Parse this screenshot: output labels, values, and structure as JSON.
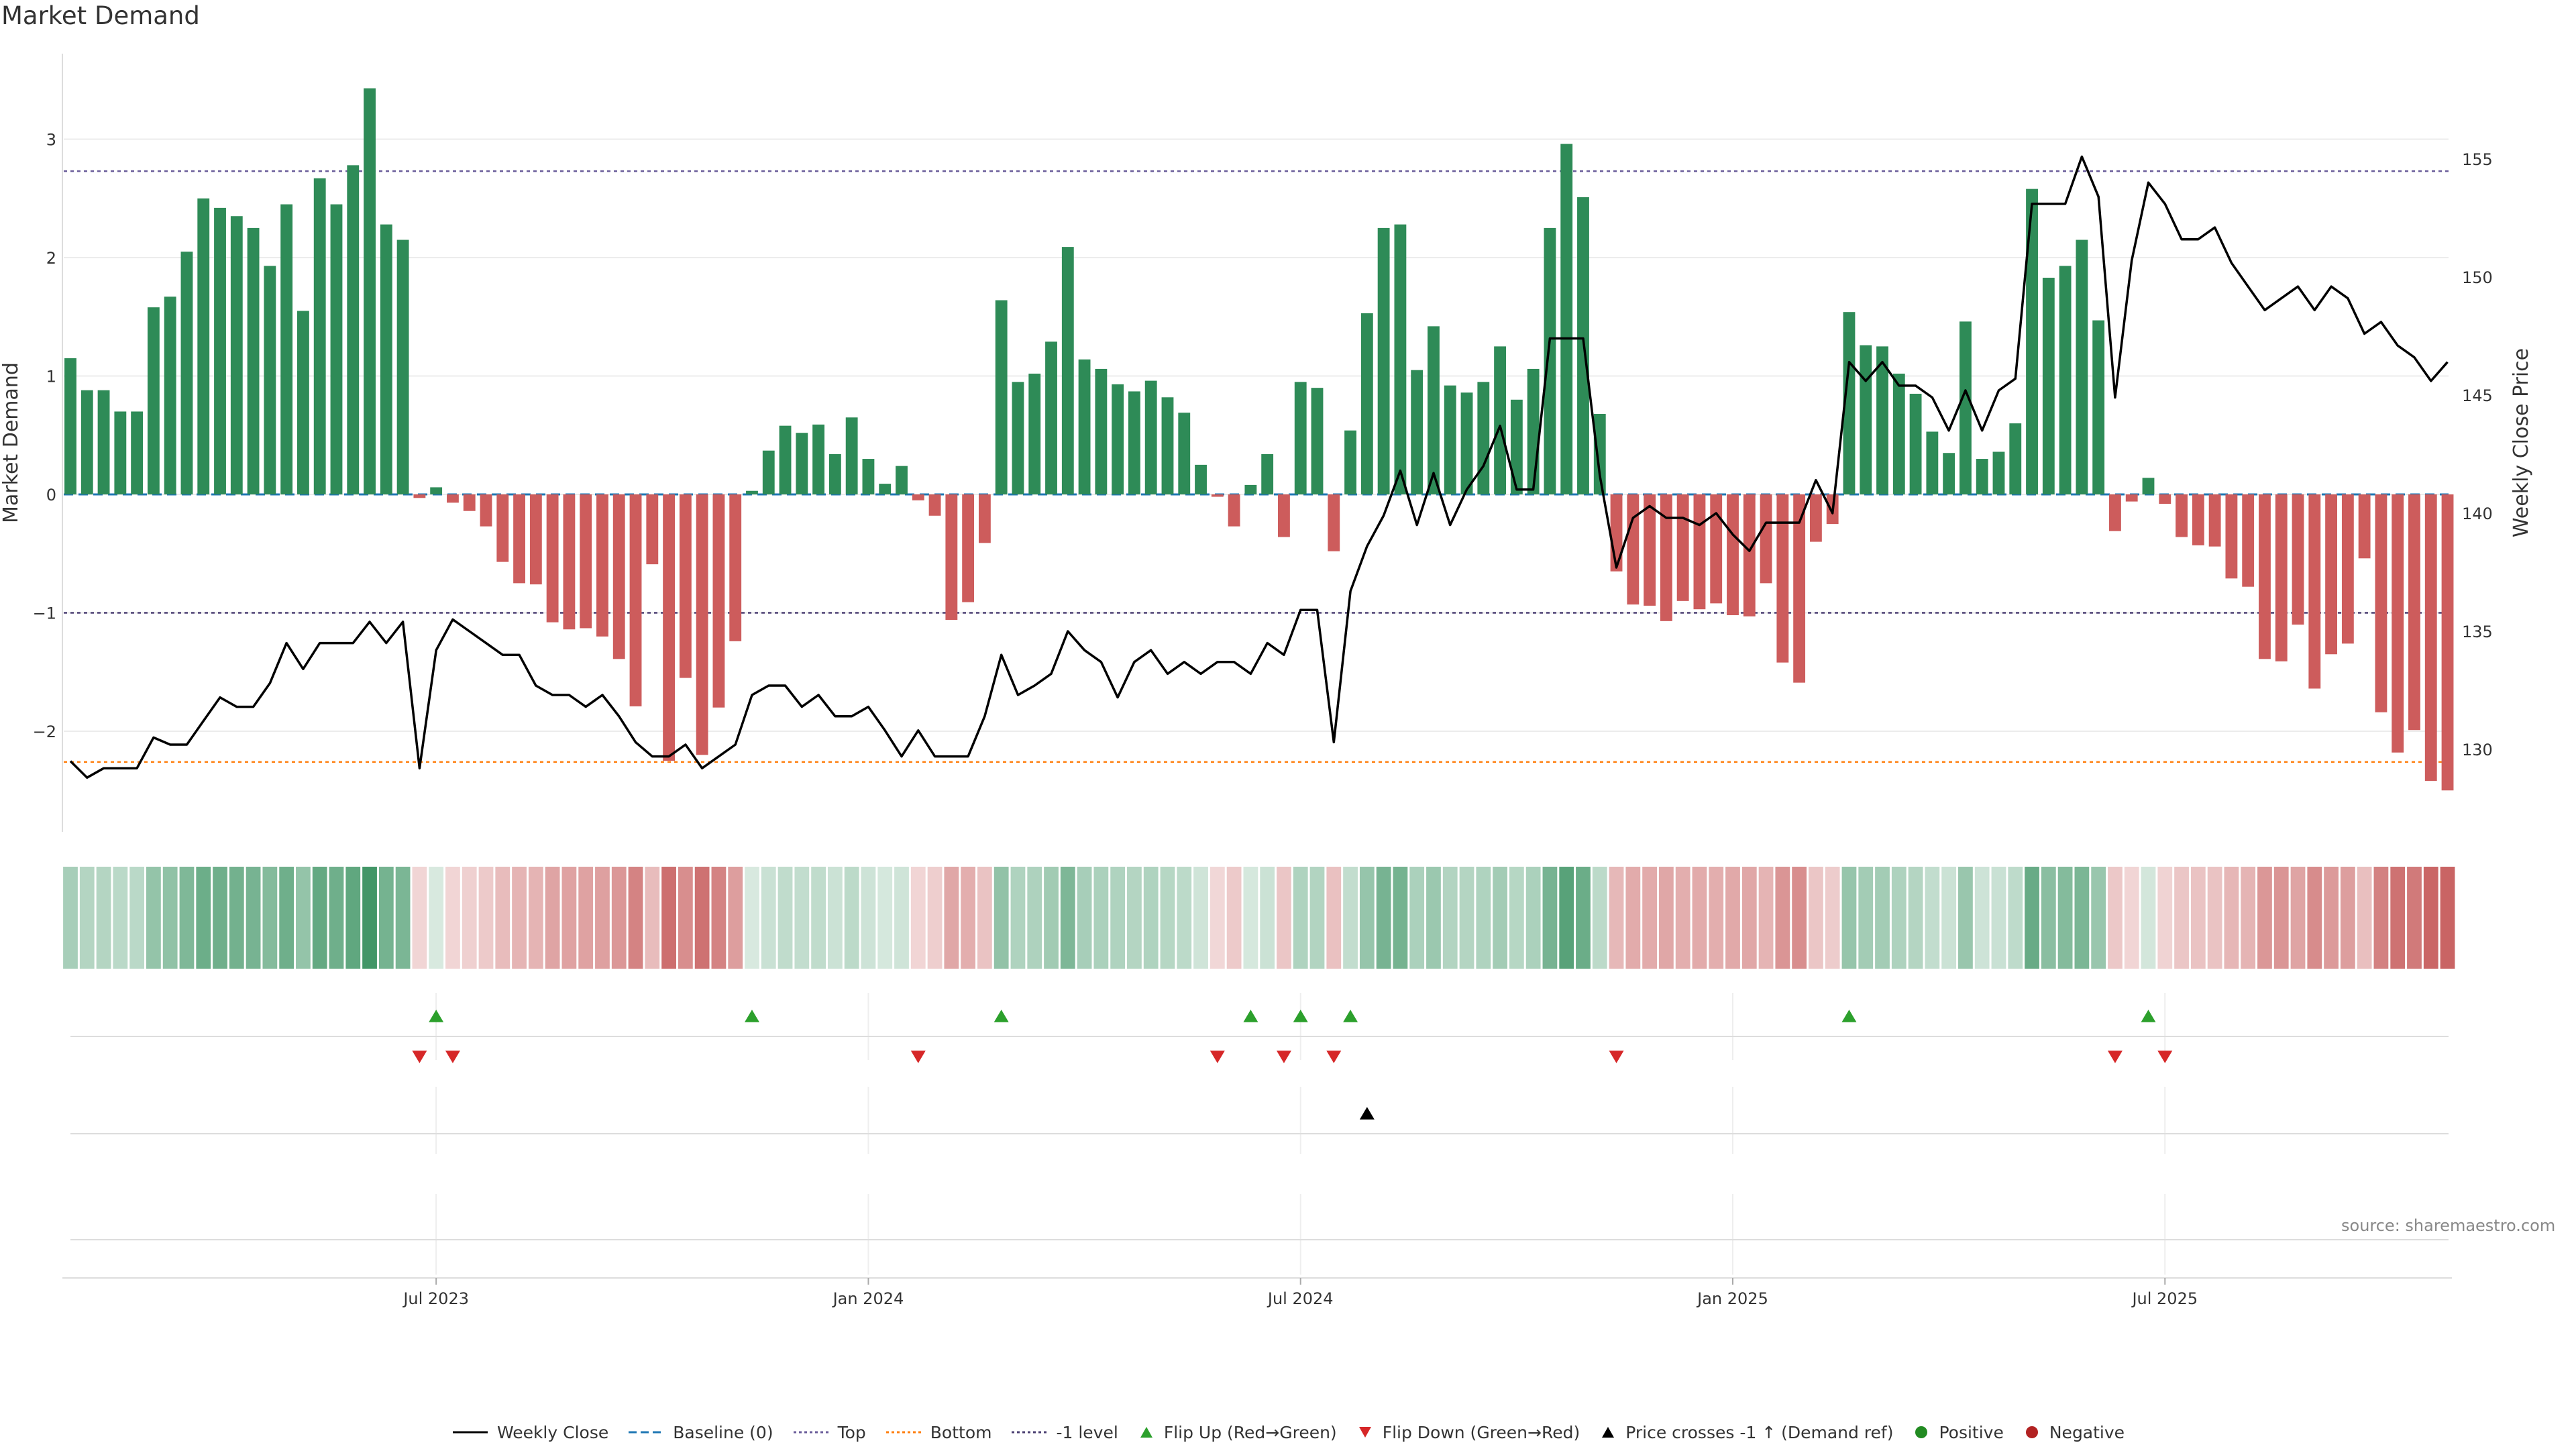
{
  "title": "Market Demand",
  "source": "source: sharemaestro.com",
  "chart_data": {
    "type": "bar",
    "title": "Market Demand",
    "ylabel": "Market Demand",
    "y2label": "Weekly Close Price",
    "ylim": [
      -2.8,
      3.75
    ],
    "y2lim": [
      127.5,
      159.5
    ],
    "yticks": [
      3,
      2,
      1,
      0,
      -1,
      -2
    ],
    "ytick_labels": [
      "3",
      "2",
      "1",
      "0",
      "−1",
      "−2"
    ],
    "y2ticks": [
      155,
      150,
      145,
      140,
      135,
      130
    ],
    "x_ticks": [
      {
        "index": 22,
        "label": "Jul 2023"
      },
      {
        "index": 48,
        "label": "Jan 2024"
      },
      {
        "index": 74,
        "label": "Jul 2024"
      },
      {
        "index": 100,
        "label": "Jan 2025"
      },
      {
        "index": 126,
        "label": "Jul 2025"
      }
    ],
    "reference_lines": {
      "baseline": 0,
      "top": 2.73,
      "bottom": -2.26,
      "minus_one_level": -1
    },
    "demand": [
      1.15,
      0.88,
      0.88,
      0.7,
      0.7,
      1.58,
      1.67,
      2.05,
      2.5,
      2.42,
      2.35,
      2.25,
      1.93,
      2.45,
      1.55,
      2.67,
      2.45,
      2.78,
      3.43,
      2.28,
      2.15,
      -0.03,
      0.06,
      -0.07,
      -0.14,
      -0.27,
      -0.57,
      -0.75,
      -0.76,
      -1.08,
      -1.14,
      -1.13,
      -1.2,
      -1.39,
      -1.79,
      -0.59,
      -2.25,
      -1.55,
      -2.2,
      -1.8,
      -1.24,
      0.03,
      0.37,
      0.58,
      0.52,
      0.59,
      0.34,
      0.65,
      0.3,
      0.09,
      0.24,
      -0.05,
      -0.18,
      -1.06,
      -0.91,
      -0.41,
      1.64,
      0.95,
      1.02,
      1.29,
      2.09,
      1.14,
      1.06,
      0.93,
      0.87,
      0.96,
      0.82,
      0.69,
      0.25,
      -0.02,
      -0.27,
      0.08,
      0.34,
      -0.36,
      0.95,
      0.9,
      -0.48,
      0.54,
      1.53,
      2.25,
      2.28,
      1.05,
      1.42,
      0.92,
      0.86,
      0.95,
      1.25,
      0.8,
      1.06,
      2.25,
      2.96,
      2.51,
      0.68,
      -0.65,
      -0.93,
      -0.94,
      -1.07,
      -0.9,
      -0.97,
      -0.92,
      -1.02,
      -1.03,
      -0.75,
      -1.42,
      -1.59,
      -0.4,
      -0.25,
      1.54,
      1.26,
      1.25,
      1.02,
      0.85,
      0.53,
      0.35,
      1.46,
      0.3,
      0.36,
      0.6,
      2.58,
      1.83,
      1.93,
      2.15,
      1.47,
      -0.31,
      -0.06,
      0.14,
      -0.08,
      -0.36,
      -0.43,
      -0.44,
      -0.71,
      -0.78,
      -1.39,
      -1.41,
      -1.1,
      -1.64,
      -1.35,
      -1.26,
      -0.54,
      -1.84,
      -2.18,
      -1.99,
      -2.42,
      -2.5
    ],
    "weekly_close": [
      129.5,
      128.8,
      129.2,
      129.2,
      129.2,
      130.5,
      130.2,
      130.2,
      131.2,
      132.2,
      131.8,
      131.8,
      132.8,
      134.5,
      133.4,
      134.5,
      134.5,
      134.5,
      135.4,
      134.5,
      135.4,
      129.2,
      134.2,
      135.5,
      135.0,
      134.5,
      134.0,
      134.0,
      132.7,
      132.3,
      132.3,
      131.8,
      132.3,
      131.4,
      130.3,
      129.7,
      129.7,
      130.2,
      129.2,
      129.7,
      130.2,
      132.3,
      132.7,
      132.7,
      131.8,
      132.3,
      131.4,
      131.4,
      131.8,
      130.8,
      129.7,
      130.8,
      129.7,
      129.7,
      129.7,
      131.4,
      134.0,
      132.3,
      132.7,
      133.2,
      135.0,
      134.2,
      133.7,
      132.2,
      133.7,
      134.2,
      133.2,
      133.7,
      133.2,
      133.7,
      133.7,
      133.2,
      134.5,
      134.0,
      135.9,
      135.9,
      130.3,
      136.7,
      138.6,
      139.9,
      141.8,
      139.5,
      141.7,
      139.5,
      141.0,
      142.0,
      143.7,
      141.0,
      141.0,
      147.4,
      147.4,
      147.4,
      141.6,
      137.7,
      139.8,
      140.3,
      139.8,
      139.8,
      139.5,
      140.0,
      139.1,
      138.4,
      139.6,
      139.6,
      139.6,
      141.4,
      140.0,
      146.4,
      145.6,
      146.4,
      145.4,
      145.4,
      144.9,
      143.5,
      145.2,
      143.5,
      145.2,
      145.7,
      153.1,
      153.1,
      153.1,
      155.1,
      153.4,
      144.9,
      150.7,
      154.0,
      153.1,
      151.6,
      151.6,
      152.1,
      150.6,
      149.6,
      148.6,
      149.1,
      149.6,
      148.6,
      149.6,
      149.1,
      147.6,
      148.1,
      147.1,
      146.6,
      145.6,
      146.4
    ],
    "flip_up_idx": [
      22,
      41,
      56,
      71,
      74,
      77,
      107,
      125
    ],
    "flip_down_idx": [
      21,
      23,
      51,
      69,
      73,
      76,
      93,
      123,
      126
    ],
    "price_cross_idx": [
      78
    ],
    "legend": [
      {
        "label": "Weekly Close",
        "marker": "line-solid",
        "color": "#000000"
      },
      {
        "label": "Baseline (0)",
        "marker": "line-dash",
        "color": "#1f77b4"
      },
      {
        "label": "Top",
        "marker": "line-dot",
        "color": "#6a5d9a"
      },
      {
        "label": "Bottom",
        "marker": "line-dot",
        "color": "#ff7f0e"
      },
      {
        "label": "-1 level",
        "marker": "line-dot",
        "color": "#4b3f72"
      },
      {
        "label": "Flip Up (Red→Green)",
        "marker": "triangle-up",
        "color": "#2ca02c"
      },
      {
        "label": "Flip Down (Green→Red)",
        "marker": "triangle-down",
        "color": "#d62728"
      },
      {
        "label": "Price crosses -1 ↑ (Demand ref)",
        "marker": "triangle-up",
        "color": "#000000"
      },
      {
        "label": "Positive",
        "marker": "circle",
        "color": "#228b22"
      },
      {
        "label": "Negative",
        "marker": "circle",
        "color": "#b22222"
      }
    ],
    "colors": {
      "positive_bar": "#2e8b57",
      "negative_bar": "#cd5c5c",
      "close_line": "#000000",
      "strip_positive": "#2e8b57",
      "strip_negative": "#b22222"
    }
  }
}
